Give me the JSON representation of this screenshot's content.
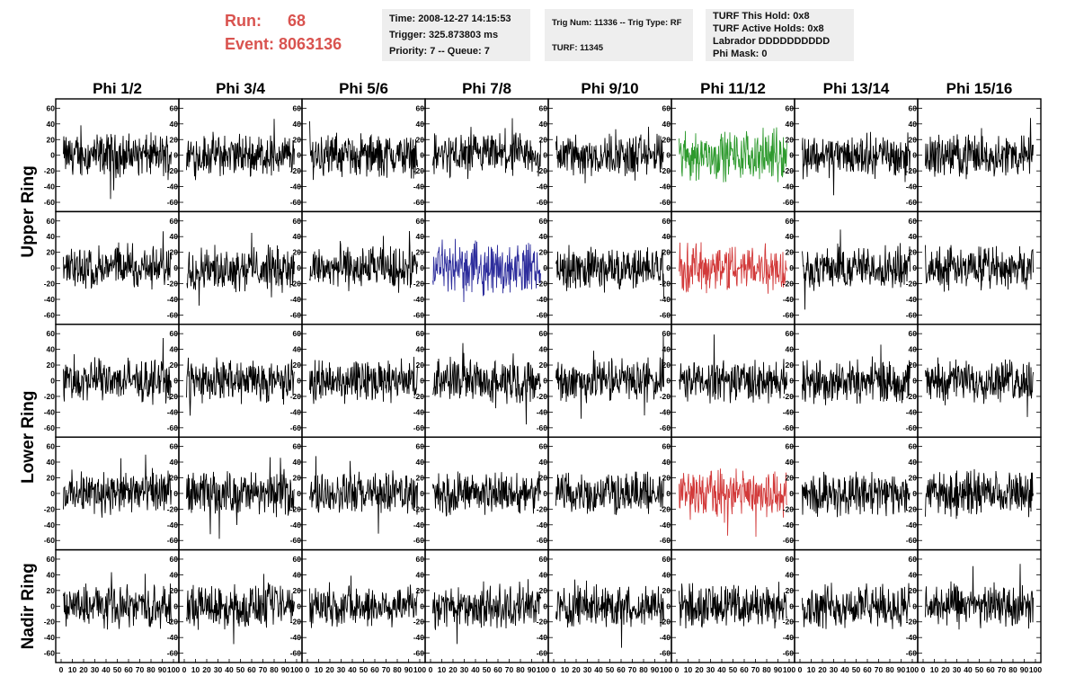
{
  "header": {
    "run_label": "Run:",
    "run_value": "68",
    "event_label": "Event:",
    "event_value": "8063136",
    "time": "Time: 2008-12-27 14:15:53",
    "trigger": "Trigger: 325.873803 ms",
    "priority": "Priority: 7 -- Queue: 7",
    "trig_num": "Trig Num: 11336 -- Trig Type: RF",
    "turf": "TURF: 11345",
    "turf_this_hold": "TURF This Hold: 0x8",
    "turf_active_holds": "TURF Active Holds: 0x8",
    "labrador": "Labrador DDDDDDDDDD",
    "phi_mask": "Phi Mask: 0"
  },
  "chart_data": {
    "type": "line",
    "columns": [
      "Phi 1/2",
      "Phi 3/4",
      "Phi 5/6",
      "Phi 7/8",
      "Phi 9/10",
      "Phi 11/12",
      "Phi 13/14",
      "Phi 15/16"
    ],
    "row_groups": [
      {
        "label": "Upper Ring",
        "rows": [
          0,
          1
        ]
      },
      {
        "label": "Lower Ring",
        "rows": [
          2,
          3
        ]
      },
      {
        "label": "Nadir Ring",
        "rows": [
          4
        ]
      }
    ],
    "xlim": [
      0,
      100
    ],
    "ylim": [
      -65,
      65
    ],
    "yticks": [
      -60,
      -40,
      -20,
      0,
      20,
      40,
      60
    ],
    "xticks": [
      0,
      10,
      20,
      30,
      40,
      50,
      60,
      70,
      80,
      90,
      100
    ],
    "trace_amplitude": 20,
    "highlights": [
      {
        "row": 0,
        "col": 5,
        "color": "#2e9a2e"
      },
      {
        "row": 1,
        "col": 3,
        "color": "#2d2d9c"
      },
      {
        "row": 1,
        "col": 5,
        "color": "#d23a3a"
      },
      {
        "row": 3,
        "col": 5,
        "color": "#d23a3a"
      }
    ],
    "default_color": "#000000"
  }
}
